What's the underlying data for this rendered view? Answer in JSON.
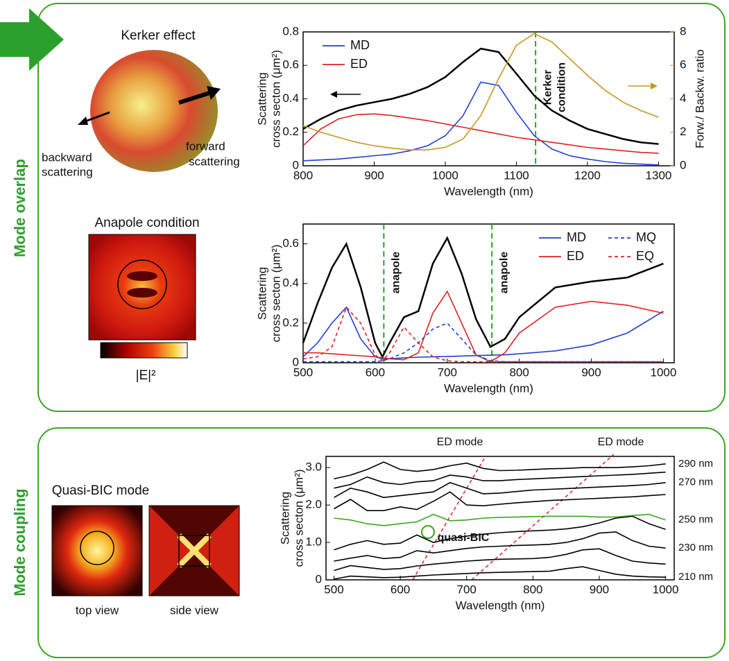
{
  "figure": {
    "side_labels": [
      "Mode overlap",
      "Mode coupling"
    ],
    "kerker_title": "Kerker effect",
    "backward": [
      "backward",
      "scattering"
    ],
    "forward": [
      "forward",
      "scattering"
    ],
    "anapole_title": "Anapole condition",
    "colorbar_label": "|E|²",
    "bic_title": "Quasi-BIC mode",
    "views": [
      "top view",
      "side view"
    ]
  },
  "chart_data": [
    {
      "type": "line",
      "xlabel": "Wavelength (nm)",
      "ylabel": [
        "Scattering",
        "cross secton (μm²)"
      ],
      "y2label": "Forw./ Backw. ratio",
      "xlim": [
        800,
        1322
      ],
      "xticks": [
        800,
        900,
        1000,
        1100,
        1200,
        1300
      ],
      "ylim": [
        0,
        0.8
      ],
      "yticks": [
        0,
        0.2,
        0.4,
        0.6,
        0.8
      ],
      "y2lim": [
        0,
        8
      ],
      "y2ticks": [
        0,
        2,
        4,
        6,
        8
      ],
      "y2color": "#c8961e",
      "legend": "upper left",
      "vlines": [
        1127
      ],
      "vline_color": "#2ca02c",
      "annotations": [
        [
          "Kerker",
          "condition"
        ]
      ],
      "x": [
        800,
        825,
        850,
        875,
        900,
        925,
        950,
        975,
        1000,
        1025,
        1050,
        1075,
        1100,
        1125,
        1150,
        1175,
        1200,
        1225,
        1250,
        1275,
        1300
      ],
      "series": [
        {
          "color": "#000000",
          "width": 2.5,
          "values": [
            0.22,
            0.28,
            0.33,
            0.36,
            0.38,
            0.4,
            0.43,
            0.47,
            0.53,
            0.62,
            0.7,
            0.68,
            0.55,
            0.42,
            0.33,
            0.27,
            0.22,
            0.19,
            0.16,
            0.14,
            0.13
          ]
        },
        {
          "name": "MD",
          "color": "#1f3fd6",
          "values": [
            0.03,
            0.035,
            0.04,
            0.05,
            0.06,
            0.07,
            0.09,
            0.12,
            0.18,
            0.3,
            0.5,
            0.48,
            0.32,
            0.18,
            0.1,
            0.06,
            0.04,
            0.025,
            0.015,
            0.01,
            0.005
          ]
        },
        {
          "name": "ED",
          "color": "#e02020",
          "values": [
            0.12,
            0.22,
            0.28,
            0.305,
            0.31,
            0.3,
            0.285,
            0.27,
            0.25,
            0.23,
            0.21,
            0.19,
            0.17,
            0.155,
            0.14,
            0.125,
            0.11,
            0.1,
            0.09,
            0.08,
            0.075
          ]
        },
        {
          "color": "#c8961e",
          "axis": "y2",
          "values": [
            2.4,
            2.0,
            1.7,
            1.4,
            1.2,
            1.05,
            0.95,
            0.95,
            1.1,
            1.6,
            3.0,
            5.2,
            7.2,
            7.9,
            7.4,
            6.4,
            5.4,
            4.5,
            3.8,
            3.3,
            2.9
          ]
        }
      ]
    },
    {
      "type": "line",
      "xlabel": "Wavelength (nm)",
      "ylabel": [
        "Scattering",
        "cross secton (μm²)"
      ],
      "xlim": [
        500,
        1015
      ],
      "xticks": [
        500,
        600,
        700,
        800,
        900,
        1000
      ],
      "ylim": [
        0,
        0.7
      ],
      "yticks": [
        0,
        0.2,
        0.4,
        0.6
      ],
      "legend": "upper right",
      "vlines": [
        612,
        762
      ],
      "vline_color": "#2ca02c",
      "annotations": [
        [
          "anapole"
        ],
        [
          "anapole"
        ]
      ],
      "x": [
        500,
        520,
        540,
        560,
        580,
        600,
        610,
        620,
        640,
        660,
        680,
        700,
        720,
        740,
        760,
        780,
        800,
        850,
        900,
        950,
        1000
      ],
      "series": [
        {
          "color": "#000000",
          "width": 2.5,
          "values": [
            0.1,
            0.3,
            0.48,
            0.6,
            0.38,
            0.1,
            0.03,
            0.1,
            0.23,
            0.26,
            0.5,
            0.63,
            0.45,
            0.22,
            0.08,
            0.12,
            0.23,
            0.38,
            0.41,
            0.43,
            0.5
          ]
        },
        {
          "name": "MD",
          "color": "#1f3fd6",
          "values": [
            0.03,
            0.1,
            0.2,
            0.28,
            0.12,
            0.03,
            0.02,
            0.02,
            0.025,
            0.028,
            0.03,
            0.032,
            0.034,
            0.036,
            0.038,
            0.04,
            0.045,
            0.06,
            0.09,
            0.15,
            0.26
          ]
        },
        {
          "name": "ED",
          "color": "#e02020",
          "values": [
            0.05,
            0.05,
            0.045,
            0.04,
            0.035,
            0.03,
            0.025,
            0.02,
            0.015,
            0.05,
            0.25,
            0.36,
            0.2,
            0.04,
            0.005,
            0.05,
            0.15,
            0.28,
            0.31,
            0.29,
            0.25
          ]
        },
        {
          "name": "MQ",
          "color": "#1f3fd6",
          "dash": true,
          "values": [
            0.005,
            0.005,
            0.005,
            0.005,
            0.005,
            0.005,
            0.01,
            0.02,
            0.05,
            0.1,
            0.17,
            0.2,
            0.12,
            0.04,
            0.01,
            0.005,
            0.005,
            0.005,
            0.005,
            0.005,
            0.005
          ]
        },
        {
          "name": "EQ",
          "color": "#e02020",
          "dash": true,
          "values": [
            0.02,
            0.03,
            0.08,
            0.28,
            0.2,
            0.04,
            0.01,
            0.05,
            0.18,
            0.1,
            0.03,
            0.01,
            0.005,
            0.005,
            0.005,
            0.005,
            0.005,
            0.005,
            0.005,
            0.005,
            0.005
          ]
        }
      ]
    },
    {
      "type": "line",
      "xlabel": "Wavelength (nm)",
      "ylabel": [
        "Scattering",
        "cross secton (μm²)"
      ],
      "xlim": [
        488,
        1013
      ],
      "xticks": [
        500,
        600,
        700,
        800,
        900,
        1000
      ],
      "ylim": [
        0,
        3.3
      ],
      "yticks": [
        0,
        {
          "value": 1,
          "label": "1.0"
        },
        {
          "value": 2,
          "label": "2.0"
        },
        {
          "value": 3,
          "label": "3.0"
        }
      ],
      "legend": "right",
      "annotations": [
        [
          "ED mode"
        ],
        [
          "ED mode"
        ],
        [
          "quasi-BIC"
        ]
      ],
      "x": [
        500,
        525,
        550,
        575,
        600,
        625,
        650,
        675,
        700,
        725,
        750,
        775,
        800,
        825,
        850,
        875,
        900,
        925,
        950,
        975,
        1000
      ],
      "series": [
        {
          "name": "210 nm",
          "color": "#000000",
          "values": [
            0.02,
            0.1,
            0.08,
            0.06,
            0.07,
            0.1,
            0.13,
            0.15,
            0.17,
            0.19,
            0.2,
            0.21,
            0.22,
            0.23,
            0.3,
            0.35,
            0.25,
            0.15,
            0.1,
            0.08,
            0.07
          ]
        },
        {
          "color": "#000000",
          "values": [
            0.25,
            0.38,
            0.33,
            0.28,
            0.3,
            0.37,
            0.42,
            0.46,
            0.5,
            0.53,
            0.55,
            0.56,
            0.57,
            0.6,
            0.68,
            0.8,
            0.83,
            0.65,
            0.5,
            0.45,
            0.42
          ]
        },
        {
          "name": "230 nm",
          "color": "#000000",
          "values": [
            0.5,
            0.58,
            0.65,
            0.57,
            0.6,
            0.78,
            0.72,
            0.78,
            0.84,
            0.88,
            0.9,
            0.92,
            0.93,
            0.95,
            1.0,
            1.1,
            1.25,
            1.28,
            1.05,
            0.9,
            0.85
          ]
        },
        {
          "color": "#000000",
          "values": [
            0.8,
            0.95,
            1.05,
            0.95,
            0.98,
            1.2,
            1.0,
            1.1,
            1.17,
            1.22,
            1.26,
            1.29,
            1.31,
            1.33,
            1.36,
            1.42,
            1.52,
            1.65,
            1.7,
            1.5,
            1.35
          ]
        },
        {
          "name": "250 nm",
          "color": "#3aa51e",
          "values": [
            1.65,
            1.6,
            1.5,
            1.45,
            1.5,
            1.55,
            1.75,
            1.58,
            1.6,
            1.65,
            1.67,
            1.68,
            1.69,
            1.7,
            1.7,
            1.7,
            1.68,
            1.68,
            1.72,
            1.75,
            1.6
          ]
        },
        {
          "color": "#000000",
          "values": [
            1.9,
            2.15,
            1.85,
            1.85,
            1.95,
            1.88,
            2.1,
            2.35,
            2.0,
            1.98,
            2.02,
            2.06,
            2.09,
            2.12,
            2.14,
            2.16,
            2.18,
            2.2,
            2.22,
            2.25,
            2.28
          ]
        },
        {
          "name": "270 nm",
          "color": "#000000",
          "values": [
            2.2,
            2.45,
            2.35,
            2.2,
            2.25,
            2.3,
            2.35,
            2.6,
            2.45,
            2.3,
            2.32,
            2.36,
            2.4,
            2.42,
            2.44,
            2.46,
            2.48,
            2.5,
            2.52,
            2.55,
            2.6
          ]
        },
        {
          "color": "#000000",
          "values": [
            2.45,
            2.55,
            2.75,
            2.6,
            2.55,
            2.62,
            2.65,
            2.8,
            2.75,
            2.65,
            2.65,
            2.68,
            2.7,
            2.72,
            2.74,
            2.76,
            2.78,
            2.8,
            2.82,
            2.85,
            2.88
          ]
        },
        {
          "name": "290 nm",
          "color": "#000000",
          "values": [
            2.7,
            2.8,
            2.95,
            3.15,
            2.95,
            2.9,
            2.95,
            3.05,
            3.12,
            2.98,
            2.92,
            2.93,
            2.95,
            2.97,
            2.98,
            3.0,
            3.0,
            3.0,
            3.02,
            3.05,
            3.1
          ]
        }
      ]
    }
  ]
}
